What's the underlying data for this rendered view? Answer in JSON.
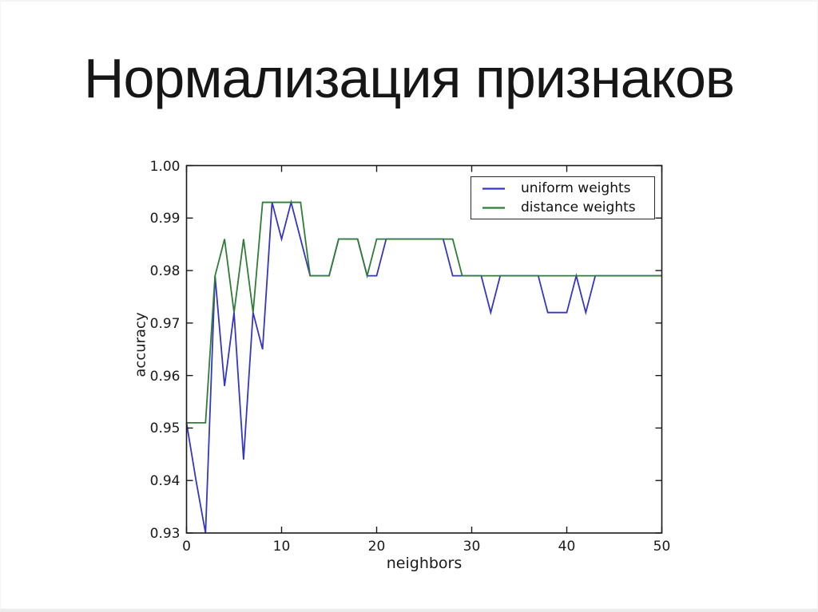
{
  "slide": {
    "title": "Нормализация признаков"
  },
  "chart_data": {
    "type": "line",
    "title": "",
    "xlabel": "neighbors",
    "ylabel": "accuracy",
    "xlim": [
      0,
      50
    ],
    "ylim": [
      0.93,
      1.0
    ],
    "xticks": [
      0,
      10,
      20,
      30,
      40,
      50
    ],
    "yticks": [
      1.0,
      0.99,
      0.98,
      0.97,
      0.96,
      0.95,
      0.94,
      0.93
    ],
    "grid": false,
    "legend_position": "upper right",
    "x": [
      0,
      1,
      2,
      3,
      4,
      5,
      6,
      7,
      8,
      9,
      10,
      11,
      12,
      13,
      14,
      15,
      16,
      17,
      18,
      19,
      20,
      21,
      22,
      23,
      24,
      25,
      26,
      27,
      28,
      29,
      30,
      31,
      32,
      33,
      34,
      35,
      36,
      37,
      38,
      39,
      40,
      41,
      42,
      43,
      44,
      45,
      46,
      47,
      48,
      49,
      50
    ],
    "series": [
      {
        "name": "uniform weights",
        "color": "#3636c4",
        "values": [
          0.951,
          0.94,
          0.93,
          0.979,
          0.958,
          0.972,
          0.944,
          0.972,
          0.965,
          0.993,
          0.986,
          0.993,
          0.986,
          0.979,
          0.979,
          0.979,
          0.986,
          0.986,
          0.986,
          0.979,
          0.979,
          0.986,
          0.986,
          0.986,
          0.986,
          0.986,
          0.986,
          0.986,
          0.979,
          0.979,
          0.979,
          0.979,
          0.972,
          0.979,
          0.979,
          0.979,
          0.979,
          0.979,
          0.972,
          0.972,
          0.972,
          0.979,
          0.972,
          0.979,
          0.979,
          0.979,
          0.979,
          0.979,
          0.979,
          0.979,
          0.979
        ]
      },
      {
        "name": "distance weights",
        "color": "#2f7d38",
        "values": [
          0.951,
          0.951,
          0.951,
          0.979,
          0.986,
          0.972,
          0.986,
          0.972,
          0.993,
          0.993,
          0.993,
          0.993,
          0.993,
          0.979,
          0.979,
          0.979,
          0.986,
          0.986,
          0.986,
          0.979,
          0.986,
          0.986,
          0.986,
          0.986,
          0.986,
          0.986,
          0.986,
          0.986,
          0.986,
          0.979,
          0.979,
          0.979,
          0.979,
          0.979,
          0.979,
          0.979,
          0.979,
          0.979,
          0.979,
          0.979,
          0.979,
          0.979,
          0.979,
          0.979,
          0.979,
          0.979,
          0.979,
          0.979,
          0.979,
          0.979,
          0.979
        ]
      }
    ],
    "axis_color": "#1a1a1a"
  }
}
